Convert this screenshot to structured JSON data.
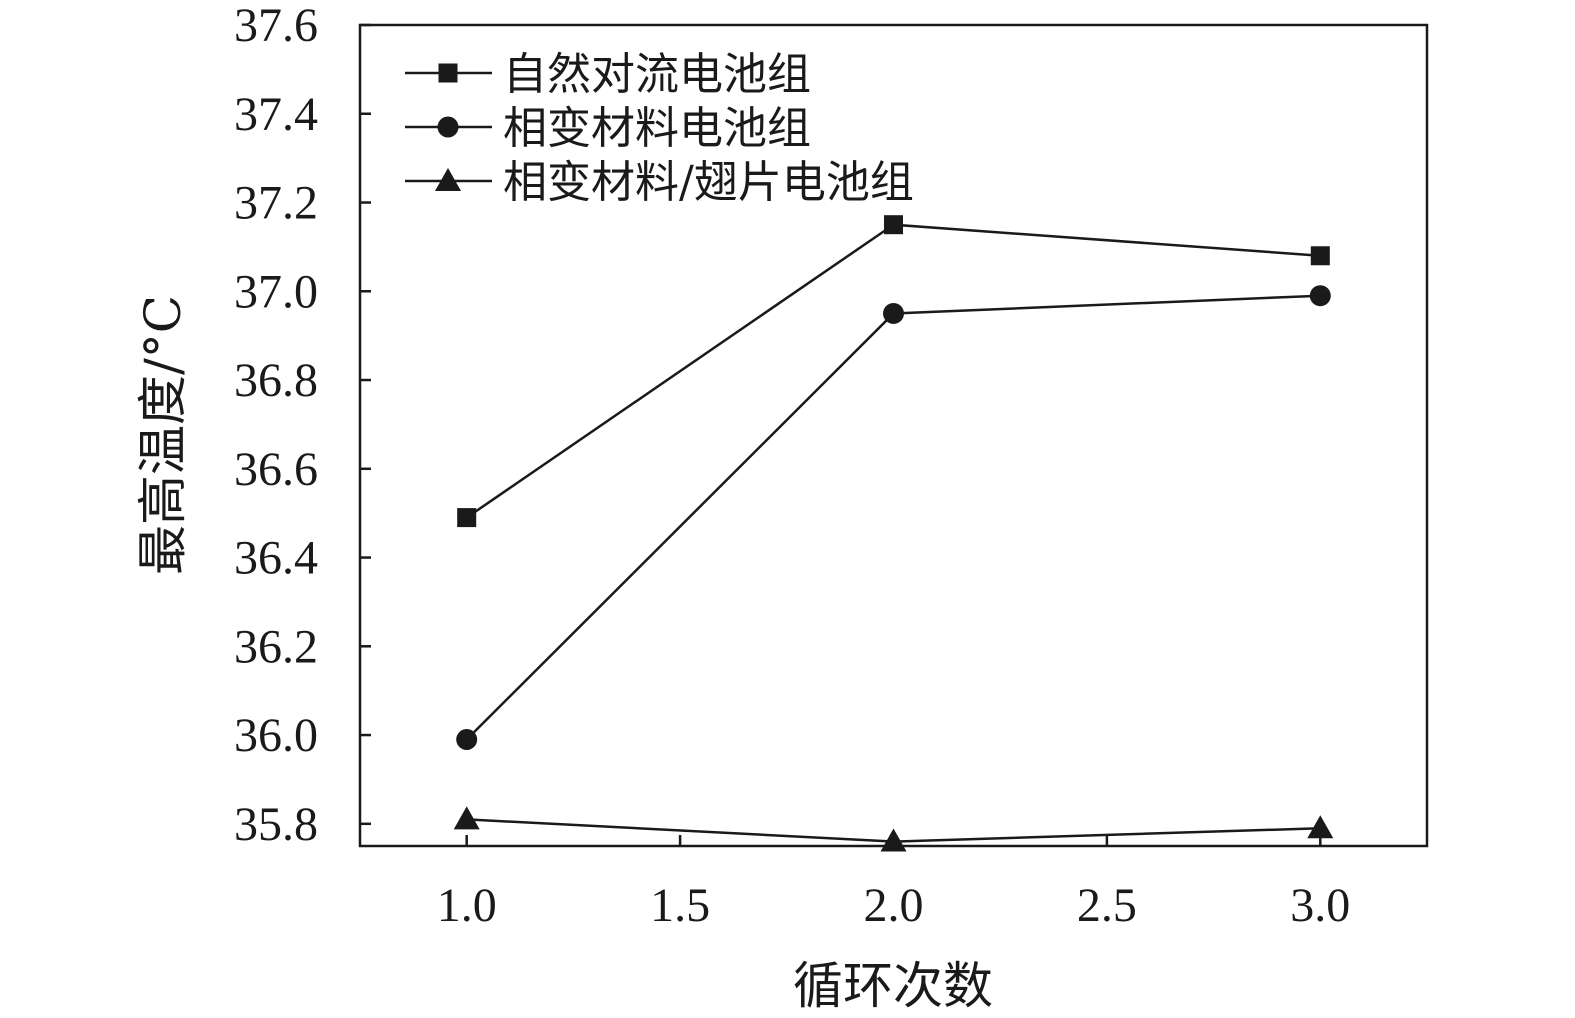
{
  "chart_data": {
    "type": "line",
    "xlabel": "循环次数",
    "ylabel": "最高温度/°C",
    "xlim": [
      0.75,
      3.25
    ],
    "ylim": [
      35.75,
      37.6
    ],
    "xticks": [
      1.0,
      1.5,
      2.0,
      2.5,
      3.0
    ],
    "xtick_labels": [
      "1.0",
      "1.5",
      "2.0",
      "2.5",
      "3.0"
    ],
    "yticks": [
      35.8,
      36.0,
      36.2,
      36.4,
      36.6,
      36.8,
      37.0,
      37.2,
      37.4,
      37.6
    ],
    "ytick_labels": [
      "35.8",
      "36.0",
      "36.2",
      "36.4",
      "36.6",
      "36.8",
      "37.0",
      "37.2",
      "37.4",
      "37.6"
    ],
    "grid": false,
    "legend_position": "top-left",
    "x": [
      1.0,
      2.0,
      3.0
    ],
    "series": [
      {
        "name": "自然对流电池组",
        "marker": "square",
        "values": [
          36.49,
          37.15,
          37.08
        ]
      },
      {
        "name": "相变材料电池组",
        "marker": "circle",
        "values": [
          35.99,
          36.95,
          36.99
        ]
      },
      {
        "name": "相变材料/翅片电池组",
        "marker": "triangle",
        "values": [
          35.81,
          35.76,
          35.79
        ]
      }
    ],
    "colors": {
      "line": "#1a1a1a",
      "marker": "#1a1a1a",
      "axis": "#1a1a1a"
    }
  }
}
